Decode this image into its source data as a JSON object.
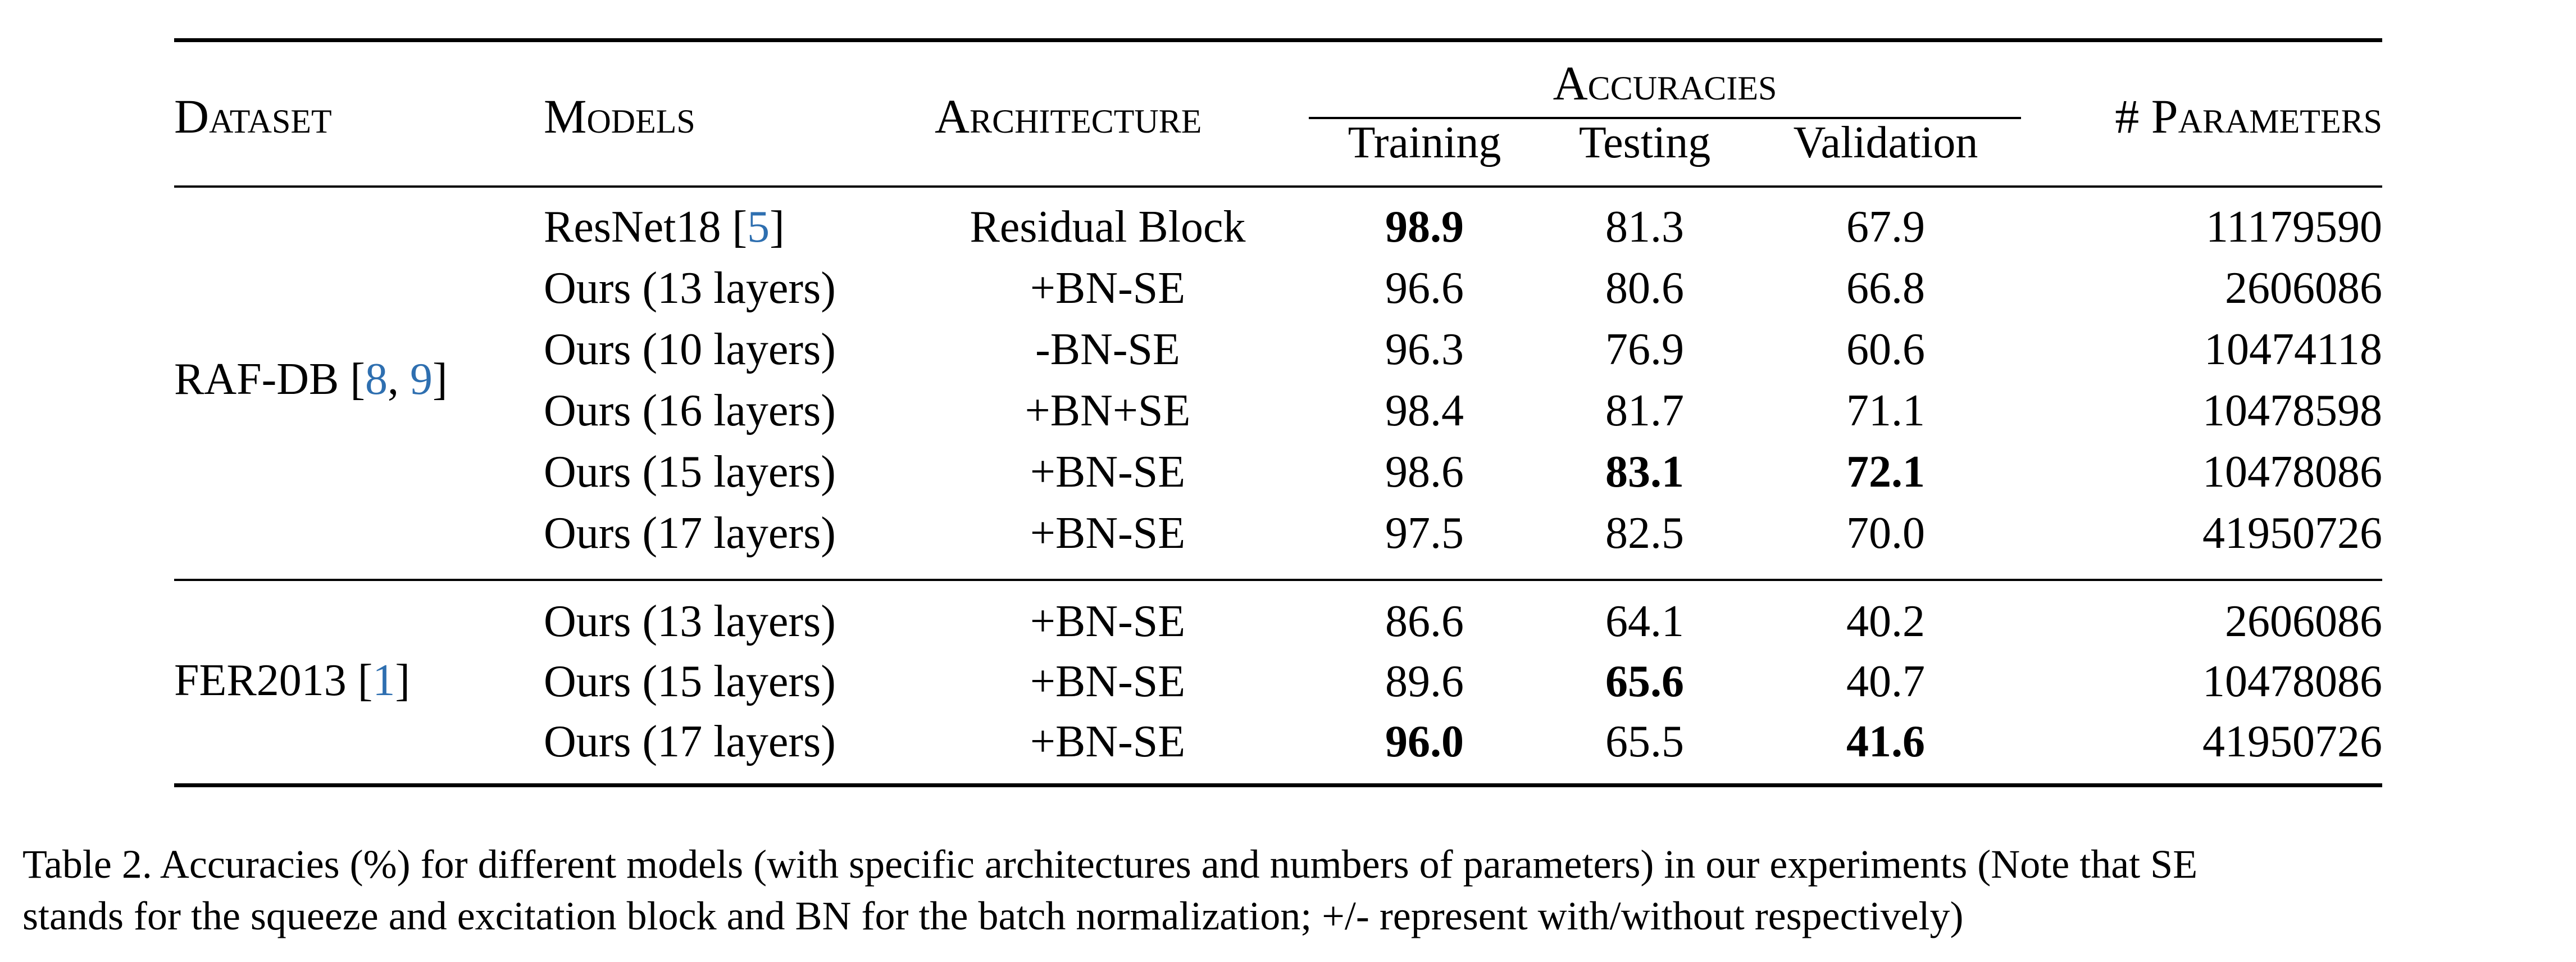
{
  "table": {
    "headers": {
      "dataset": "Dataset",
      "models": "Models",
      "architecture": "Architecture",
      "accuracies": "Accuracies",
      "training": "Training",
      "testing": "Testing",
      "validation": "Validation",
      "parameters": "# Parameters"
    },
    "groups": [
      {
        "dataset": "RAF-DB",
        "cites": [
          "8",
          "9"
        ],
        "rows": [
          {
            "model": "ResNet18",
            "cite": "5",
            "arch": "Residual Block",
            "training": "98.9",
            "testing": "81.3",
            "validation": "67.9",
            "params": "11179590",
            "bold": [
              "training"
            ]
          },
          {
            "model": "Ours (13 layers)",
            "arch": "+BN-SE",
            "training": "96.6",
            "testing": "80.6",
            "validation": "66.8",
            "params": "2606086",
            "bold": []
          },
          {
            "model": "Ours (10 layers)",
            "arch": "-BN-SE",
            "training": "96.3",
            "testing": "76.9",
            "validation": "60.6",
            "params": "10474118",
            "bold": []
          },
          {
            "model": "Ours (16 layers)",
            "arch": "+BN+SE",
            "training": "98.4",
            "testing": "81.7",
            "validation": "71.1",
            "params": "10478598",
            "bold": []
          },
          {
            "model": "Ours (15 layers)",
            "arch": "+BN-SE",
            "training": "98.6",
            "testing": "83.1",
            "validation": "72.1",
            "params": "10478086",
            "bold": [
              "testing",
              "validation"
            ]
          },
          {
            "model": "Ours (17 layers)",
            "arch": "+BN-SE",
            "training": "97.5",
            "testing": "82.5",
            "validation": "70.0",
            "params": "41950726",
            "bold": []
          }
        ]
      },
      {
        "dataset": "FER2013",
        "cites": [
          "1"
        ],
        "rows": [
          {
            "model": "Ours (13 layers)",
            "arch": "+BN-SE",
            "training": "86.6",
            "testing": "64.1",
            "validation": "40.2",
            "params": "2606086",
            "bold": []
          },
          {
            "model": "Ours (15 layers)",
            "arch": "+BN-SE",
            "training": "89.6",
            "testing": "65.6",
            "validation": "40.7",
            "params": "10478086",
            "bold": [
              "testing"
            ]
          },
          {
            "model": "Ours (17 layers)",
            "arch": "+BN-SE",
            "training": "96.0",
            "testing": "65.5",
            "validation": "41.6",
            "params": "41950726",
            "bold": [
              "training",
              "validation"
            ]
          }
        ]
      }
    ]
  },
  "caption": {
    "line1": "Table 2. Accuracies (%) for different models (with specific architectures and numbers of parameters) in our experiments (Note that SE",
    "line2": "stands for the squeeze and excitation block and BN for the batch normalization; +/- represent with/without respectively)"
  }
}
